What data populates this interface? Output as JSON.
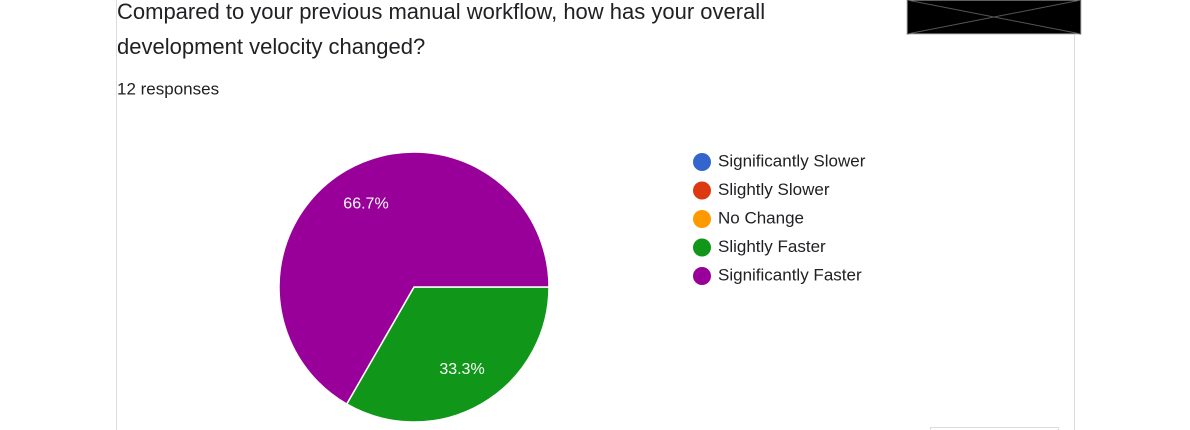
{
  "chart_data": {
    "type": "pie",
    "title": "Compared to your previous manual workflow, how has your overall development velocity changed?",
    "subtitle": "12 responses",
    "categories": [
      "Significantly Slower",
      "Slightly Slower",
      "No Change",
      "Slightly Faster",
      "Significantly Faster"
    ],
    "values": [
      0,
      0,
      0,
      33.3,
      66.7
    ],
    "value_labels": [
      null,
      null,
      null,
      "33.3%",
      "66.7%"
    ],
    "colors": [
      "#3366cc",
      "#dc3912",
      "#ff9900",
      "#109618",
      "#990099"
    ],
    "legend": "right"
  }
}
